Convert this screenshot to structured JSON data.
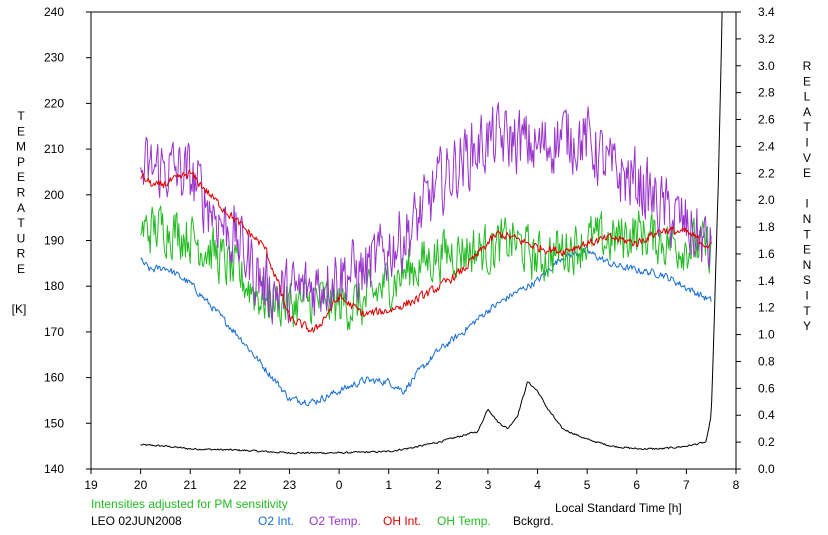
{
  "chart_data": {
    "type": "line",
    "x_unit": "Local Standard Time",
    "xlabel": "Local Standard Time [h]",
    "x_ticks": [
      "19",
      "20",
      "21",
      "22",
      "23",
      "0",
      "1",
      "2",
      "3",
      "4",
      "5",
      "6",
      "7",
      "8"
    ],
    "xlim": [
      19,
      32
    ],
    "ylabel_left_letters": [
      "T",
      "E",
      "M",
      "P",
      "E",
      "R",
      "A",
      "T",
      "U",
      "R",
      "E"
    ],
    "ylabel_left_unit": "[K]",
    "ylim_left": [
      140,
      240
    ],
    "y_ticks_left": [
      "140",
      "150",
      "160",
      "170",
      "180",
      "190",
      "200",
      "210",
      "220",
      "230",
      "240"
    ],
    "ylabel_right_letters": [
      "R",
      "E",
      "L",
      "A",
      "T",
      "I",
      "V",
      "E",
      "",
      "I",
      "N",
      "T",
      "E",
      "N",
      "S",
      "I",
      "T",
      "Y"
    ],
    "ylim_right": [
      0.0,
      3.4
    ],
    "y_ticks_right": [
      "0.0",
      "0.2",
      "0.4",
      "0.6",
      "0.8",
      "1.0",
      "1.2",
      "1.4",
      "1.6",
      "1.8",
      "2.0",
      "2.2",
      "2.4",
      "2.6",
      "2.8",
      "3.0",
      "3.2",
      "3.4"
    ],
    "note": "Intensities adjusted for PM sensitivity",
    "station": "LEO 02JUN2008",
    "grid": false,
    "legend_position": "bottom",
    "series": [
      {
        "name": "O2 Int.",
        "axis": "right",
        "color": "#1a6fd4",
        "noise": 0.025,
        "points": [
          [
            20.0,
            1.55
          ],
          [
            20.2,
            1.48
          ],
          [
            20.5,
            1.5
          ],
          [
            21.0,
            1.38
          ],
          [
            21.5,
            1.18
          ],
          [
            22.0,
            0.98
          ],
          [
            22.5,
            0.75
          ],
          [
            22.8,
            0.62
          ],
          [
            23.0,
            0.52
          ],
          [
            23.5,
            0.5
          ],
          [
            24.0,
            0.58
          ],
          [
            24.5,
            0.66
          ],
          [
            25.0,
            0.65
          ],
          [
            25.3,
            0.58
          ],
          [
            25.6,
            0.72
          ],
          [
            26.0,
            0.88
          ],
          [
            26.5,
            1.02
          ],
          [
            27.0,
            1.18
          ],
          [
            27.5,
            1.3
          ],
          [
            28.0,
            1.4
          ],
          [
            28.5,
            1.58
          ],
          [
            29.0,
            1.62
          ],
          [
            29.5,
            1.52
          ],
          [
            30.0,
            1.48
          ],
          [
            30.5,
            1.45
          ],
          [
            31.0,
            1.35
          ],
          [
            31.5,
            1.25
          ]
        ]
      },
      {
        "name": "O2 Temp.",
        "axis": "left",
        "color": "#9933cc",
        "noise": 6.5,
        "points": [
          [
            20.0,
            205
          ],
          [
            20.5,
            206
          ],
          [
            21.0,
            204
          ],
          [
            21.5,
            196
          ],
          [
            22.0,
            189
          ],
          [
            22.5,
            180
          ],
          [
            23.0,
            178
          ],
          [
            23.5,
            180
          ],
          [
            24.0,
            183
          ],
          [
            24.5,
            183
          ],
          [
            25.0,
            188
          ],
          [
            25.5,
            193
          ],
          [
            26.0,
            202
          ],
          [
            26.5,
            208
          ],
          [
            27.0,
            212
          ],
          [
            27.5,
            212
          ],
          [
            28.0,
            210
          ],
          [
            28.5,
            213
          ],
          [
            29.0,
            212
          ],
          [
            29.5,
            205
          ],
          [
            30.0,
            203
          ],
          [
            30.5,
            197
          ],
          [
            31.0,
            193
          ],
          [
            31.5,
            188
          ]
        ]
      },
      {
        "name": "OH Int.",
        "axis": "right",
        "color": "#dd0000",
        "noise": 0.03,
        "points": [
          [
            20.0,
            2.18
          ],
          [
            20.3,
            2.1
          ],
          [
            20.7,
            2.15
          ],
          [
            21.0,
            2.2
          ],
          [
            21.5,
            2.0
          ],
          [
            22.0,
            1.82
          ],
          [
            22.5,
            1.65
          ],
          [
            22.8,
            1.35
          ],
          [
            23.0,
            1.12
          ],
          [
            23.5,
            1.02
          ],
          [
            24.0,
            1.28
          ],
          [
            24.5,
            1.15
          ],
          [
            25.0,
            1.18
          ],
          [
            25.5,
            1.25
          ],
          [
            26.0,
            1.35
          ],
          [
            26.5,
            1.48
          ],
          [
            27.0,
            1.68
          ],
          [
            27.2,
            1.75
          ],
          [
            27.5,
            1.72
          ],
          [
            28.0,
            1.65
          ],
          [
            28.5,
            1.62
          ],
          [
            29.0,
            1.68
          ],
          [
            29.5,
            1.72
          ],
          [
            30.0,
            1.68
          ],
          [
            30.5,
            1.78
          ],
          [
            31.0,
            1.76
          ],
          [
            31.5,
            1.65
          ]
        ]
      },
      {
        "name": "OH Temp.",
        "axis": "left",
        "color": "#22bb22",
        "noise": 5.0,
        "points": [
          [
            20.0,
            192
          ],
          [
            20.5,
            193
          ],
          [
            21.0,
            191
          ],
          [
            21.5,
            187
          ],
          [
            22.0,
            182
          ],
          [
            22.5,
            177
          ],
          [
            23.0,
            176
          ],
          [
            23.5,
            177
          ],
          [
            24.0,
            176
          ],
          [
            24.5,
            176
          ],
          [
            25.0,
            181
          ],
          [
            25.5,
            184
          ],
          [
            26.0,
            187
          ],
          [
            26.5,
            188
          ],
          [
            27.0,
            188
          ],
          [
            27.5,
            190
          ],
          [
            28.0,
            186
          ],
          [
            28.5,
            188
          ],
          [
            29.0,
            190
          ],
          [
            29.5,
            190
          ],
          [
            30.0,
            192
          ],
          [
            30.5,
            190
          ],
          [
            31.0,
            189
          ],
          [
            31.5,
            188
          ]
        ]
      },
      {
        "name": "Bckgrd.",
        "axis": "right",
        "color": "#000000",
        "noise": 0.006,
        "points": [
          [
            20.0,
            0.18
          ],
          [
            20.5,
            0.17
          ],
          [
            21.0,
            0.15
          ],
          [
            22.0,
            0.14
          ],
          [
            23.0,
            0.12
          ],
          [
            24.0,
            0.12
          ],
          [
            25.0,
            0.13
          ],
          [
            25.5,
            0.16
          ],
          [
            26.0,
            0.2
          ],
          [
            26.8,
            0.28
          ],
          [
            27.0,
            0.45
          ],
          [
            27.2,
            0.35
          ],
          [
            27.4,
            0.3
          ],
          [
            27.6,
            0.4
          ],
          [
            27.8,
            0.65
          ],
          [
            28.0,
            0.58
          ],
          [
            28.2,
            0.45
          ],
          [
            28.5,
            0.3
          ],
          [
            29.0,
            0.22
          ],
          [
            29.5,
            0.17
          ],
          [
            30.0,
            0.15
          ],
          [
            30.5,
            0.15
          ],
          [
            31.0,
            0.17
          ],
          [
            31.4,
            0.2
          ],
          [
            31.5,
            0.4
          ],
          [
            31.55,
            0.95
          ],
          [
            31.6,
            1.6
          ],
          [
            31.65,
            2.2
          ],
          [
            31.72,
            3.4
          ]
        ]
      }
    ]
  }
}
